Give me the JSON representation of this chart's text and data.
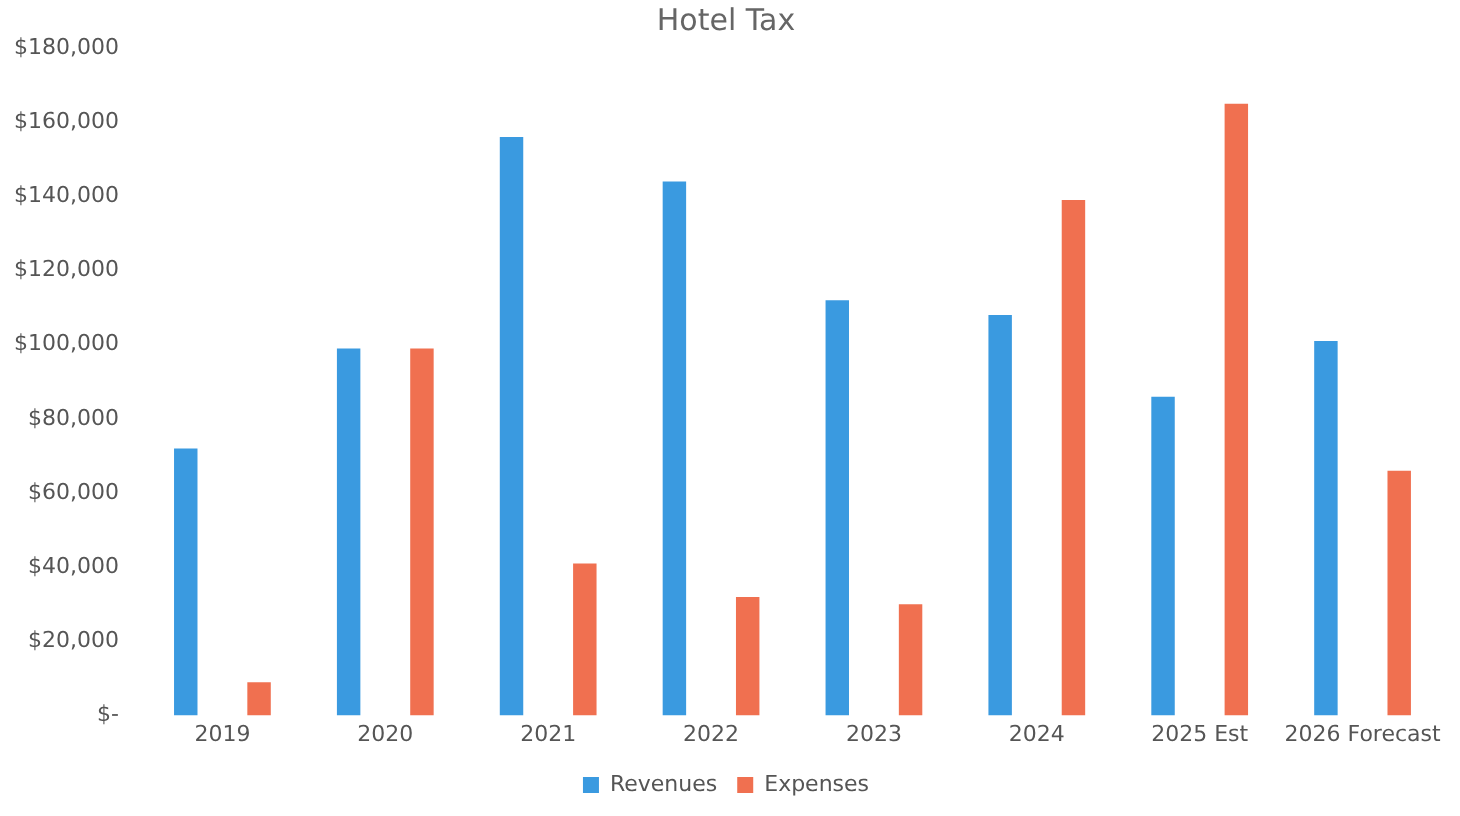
{
  "chart_data": {
    "type": "bar",
    "title": "Hotel Tax",
    "categories": [
      "2019",
      "2020",
      "2021",
      "2022",
      "2023",
      "2024",
      "2025 Est",
      "2026 Forecast"
    ],
    "series": [
      {
        "name": "Revenues",
        "color": "#3a9ae0",
        "values": [
          72000,
          99000,
          156000,
          144000,
          112000,
          108000,
          86000,
          101000
        ]
      },
      {
        "name": "Expenses",
        "color": "#f07050",
        "values": [
          9000,
          99000,
          41000,
          32000,
          30000,
          139000,
          165000,
          66000
        ]
      }
    ],
    "ylim": [
      0,
      180000
    ],
    "yticks": [
      {
        "value": 0,
        "label": "$-"
      },
      {
        "value": 20000,
        "label": "$20,000"
      },
      {
        "value": 40000,
        "label": "$40,000"
      },
      {
        "value": 60000,
        "label": "$60,000"
      },
      {
        "value": 80000,
        "label": "$80,000"
      },
      {
        "value": 100000,
        "label": "$100,000"
      },
      {
        "value": 120000,
        "label": "$120,000"
      },
      {
        "value": 140000,
        "label": "$140,000"
      },
      {
        "value": 160000,
        "label": "$160,000"
      },
      {
        "value": 180000,
        "label": "$180,000"
      }
    ],
    "grid": false,
    "legend": "bottom"
  }
}
